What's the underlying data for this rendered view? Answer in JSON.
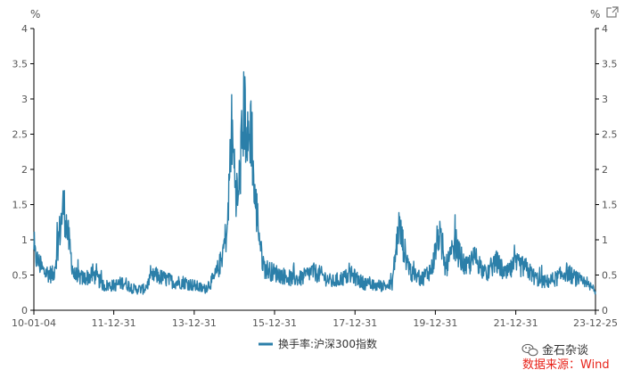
{
  "header": {
    "left_unit": "%",
    "right_unit": "%",
    "expand_icon": "expand-icon"
  },
  "legend": {
    "label": "换手率:沪深300指数"
  },
  "footer": {
    "watermark_icon": "wechat-icon",
    "watermark_text": "金石杂谈",
    "source_text": "数据来源：Wind",
    "source_color": "#e8241b"
  },
  "colors": {
    "series": "#2b7fa9",
    "axis": "#000000",
    "grid": "#e6e6e6",
    "text": "#555555"
  },
  "chart_data": {
    "type": "line",
    "title": "",
    "xlabel": "",
    "ylabel": "%",
    "ylim": [
      0,
      4
    ],
    "yticks": [
      "0",
      "0.5",
      "1",
      "1.5",
      "2",
      "2.5",
      "3",
      "3.5",
      "4"
    ],
    "y_right_axis": true,
    "xlim": [
      "2010-01-04",
      "2023-12-25"
    ],
    "xticks": [
      "10-01-04",
      "11-12-31",
      "13-12-31",
      "15-12-31",
      "17-12-31",
      "19-12-31",
      "21-12-31",
      "23-12-25"
    ],
    "grid": false,
    "legend_position": "bottom",
    "series": [
      {
        "name": "换手率:沪深300指数",
        "x": [
          "2010-01",
          "2010-04",
          "2010-07",
          "2010-10",
          "2011-01",
          "2011-04",
          "2011-07",
          "2011-10",
          "2012-01",
          "2012-04",
          "2012-07",
          "2012-10",
          "2013-01",
          "2013-04",
          "2013-07",
          "2013-10",
          "2014-01",
          "2014-04",
          "2014-07",
          "2014-09",
          "2014-11",
          "2014-12",
          "2015-01",
          "2015-02",
          "2015-03",
          "2015-04",
          "2015-05",
          "2015-06",
          "2015-07",
          "2015-08",
          "2015-09",
          "2015-10",
          "2015-12",
          "2016-03",
          "2016-06",
          "2016-09",
          "2016-12",
          "2017-03",
          "2017-06",
          "2017-09",
          "2017-12",
          "2018-03",
          "2018-06",
          "2018-09",
          "2018-12",
          "2019-02",
          "2019-04",
          "2019-06",
          "2019-09",
          "2019-12",
          "2020-02",
          "2020-04",
          "2020-07",
          "2020-10",
          "2021-01",
          "2021-04",
          "2021-07",
          "2021-10",
          "2022-01",
          "2022-04",
          "2022-07",
          "2022-10",
          "2023-01",
          "2023-04",
          "2023-07",
          "2023-10",
          "2023-12"
        ],
        "values": [
          0.8,
          0.55,
          0.5,
          1.5,
          0.5,
          0.45,
          0.5,
          0.35,
          0.35,
          0.4,
          0.3,
          0.3,
          0.5,
          0.45,
          0.4,
          0.4,
          0.35,
          0.3,
          0.45,
          0.7,
          1.2,
          2.6,
          2.0,
          1.5,
          2.2,
          2.9,
          2.3,
          2.7,
          1.6,
          1.3,
          0.8,
          0.6,
          0.55,
          0.5,
          0.45,
          0.45,
          0.55,
          0.5,
          0.4,
          0.45,
          0.5,
          0.4,
          0.35,
          0.35,
          0.35,
          1.2,
          0.8,
          0.5,
          0.45,
          0.6,
          1.1,
          0.6,
          0.9,
          0.6,
          0.75,
          0.5,
          0.7,
          0.5,
          0.65,
          0.6,
          0.45,
          0.4,
          0.45,
          0.55,
          0.45,
          0.35,
          0.3
        ]
      }
    ]
  }
}
